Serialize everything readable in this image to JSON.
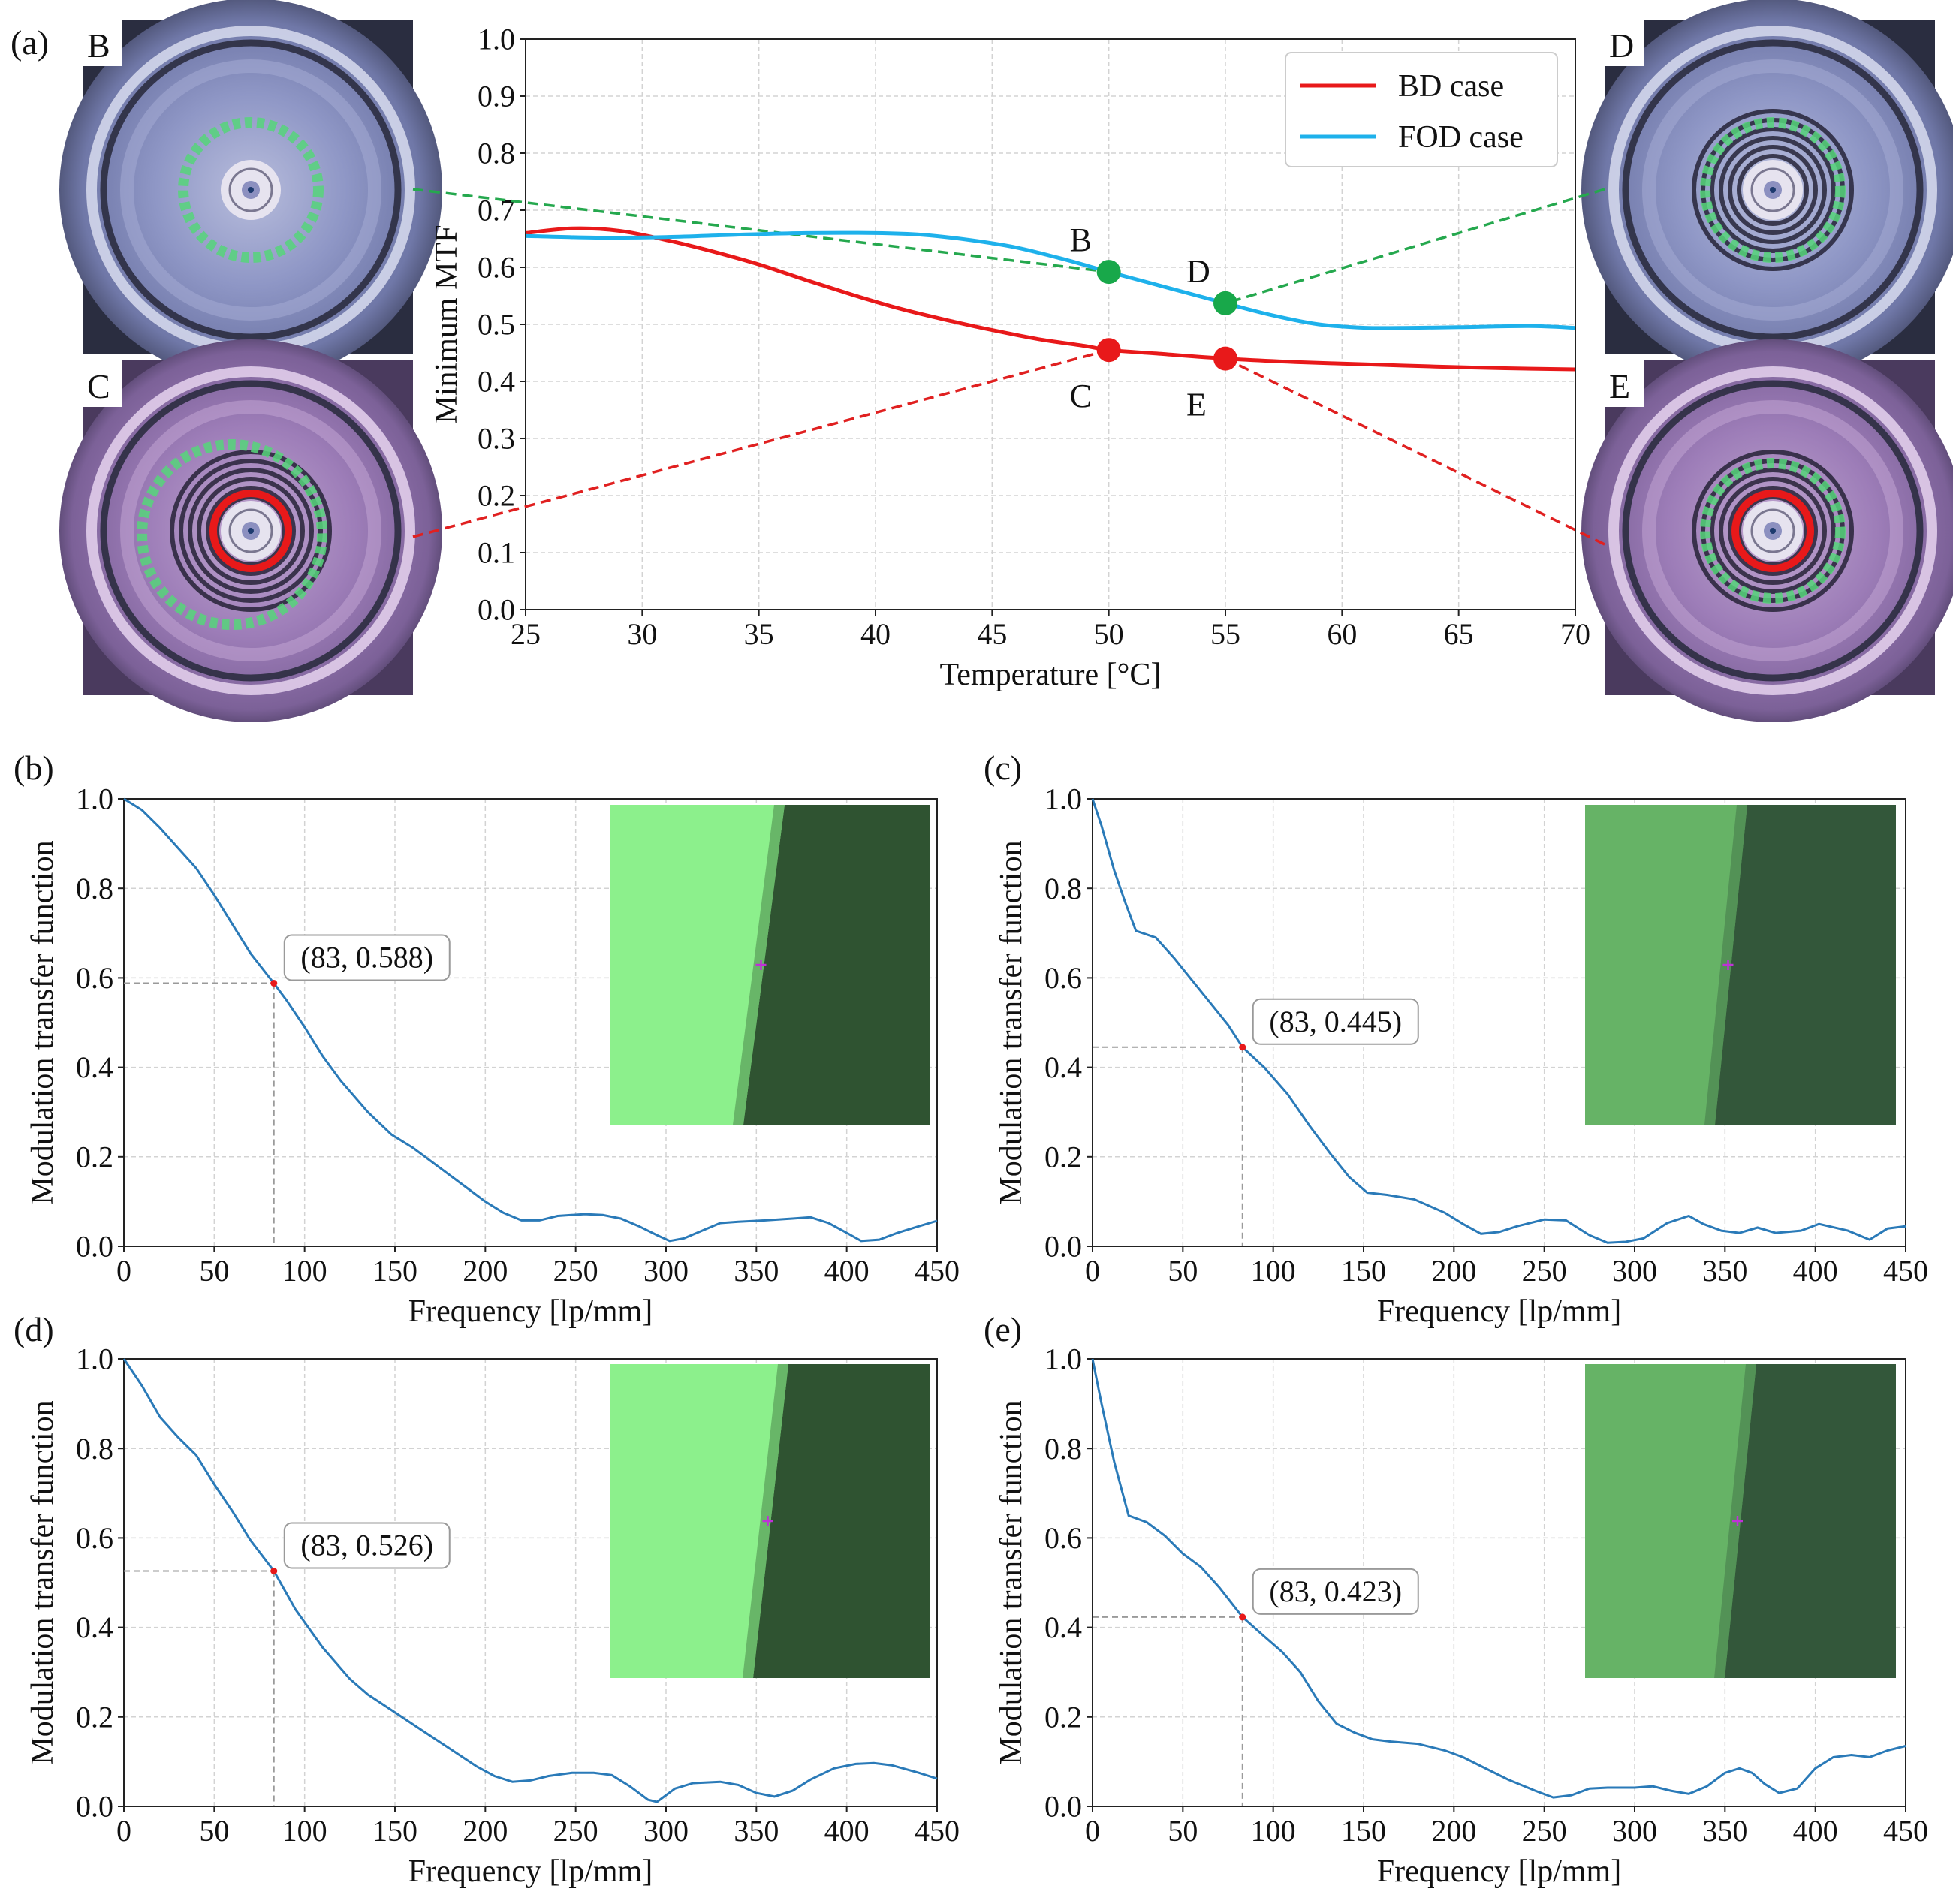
{
  "colors": {
    "bd": "#e8191a",
    "fod": "#1eb1eb",
    "mtf": "#2a7ab8",
    "green_marker": "#18a84a",
    "green_dash": "#25a84e",
    "red_dash": "#e02020",
    "grid": "#d3d3d3",
    "guide": "#9a9a9a",
    "inset_bright": "#8cf08c",
    "inset_bright_dark": "#2f5331",
    "inset_mid": "#66b366",
    "inset_mid_dark": "#33573a",
    "cross": "#c030d8"
  },
  "photos": {
    "B": {
      "label": "B",
      "variant": "fod",
      "red_ring": false
    },
    "C": {
      "label": "C",
      "variant": "bd",
      "red_ring": true
    },
    "D": {
      "label": "D",
      "variant": "fod",
      "red_ring": false
    },
    "E": {
      "label": "E",
      "variant": "bd",
      "red_ring": true
    }
  },
  "chart_data": [
    {
      "panel": "(a)",
      "type": "line",
      "xlabel": "Temperature [°C]",
      "ylabel": "Minimum MTF",
      "xlim": [
        25,
        70
      ],
      "ylim": [
        0.0,
        1.0
      ],
      "xticks": [
        25,
        30,
        35,
        40,
        45,
        50,
        55,
        60,
        65,
        70
      ],
      "yticks": [
        0.0,
        0.1,
        0.2,
        0.3,
        0.4,
        0.5,
        0.6,
        0.7,
        0.8,
        0.9,
        1.0
      ],
      "grid": true,
      "legend": "top-right",
      "series": [
        {
          "name": "BD case",
          "color_key": "bd",
          "x": [
            25,
            27,
            29,
            31,
            33,
            35,
            37,
            39,
            41,
            43,
            45,
            47,
            49,
            50,
            52,
            55,
            58,
            61,
            64,
            67,
            70
          ],
          "y": [
            0.66,
            0.668,
            0.664,
            0.648,
            0.628,
            0.605,
            0.578,
            0.552,
            0.528,
            0.508,
            0.49,
            0.474,
            0.462,
            0.455,
            0.449,
            0.44,
            0.434,
            0.43,
            0.426,
            0.423,
            0.421
          ]
        },
        {
          "name": "FOD case",
          "color_key": "fod",
          "x": [
            25,
            28,
            31,
            34,
            37,
            40,
            42,
            44,
            46,
            48,
            50,
            52,
            54,
            55,
            57,
            59,
            61,
            63,
            65,
            68,
            70
          ],
          "y": [
            0.655,
            0.652,
            0.653,
            0.657,
            0.66,
            0.66,
            0.657,
            0.648,
            0.635,
            0.615,
            0.592,
            0.57,
            0.548,
            0.537,
            0.516,
            0.5,
            0.494,
            0.494,
            0.495,
            0.497,
            0.494
          ]
        }
      ],
      "markers": [
        {
          "label": "B",
          "x": 50,
          "y": 0.592,
          "series": "FOD case",
          "photo": "B",
          "color_key": "green_marker",
          "label_pos": "above-left"
        },
        {
          "label": "D",
          "x": 55,
          "y": 0.537,
          "series": "FOD case",
          "photo": "D",
          "color_key": "green_marker",
          "label_pos": "above-left"
        },
        {
          "label": "C",
          "x": 50,
          "y": 0.455,
          "series": "BD case",
          "photo": "C",
          "color_key": "bd",
          "label_pos": "below-left"
        },
        {
          "label": "E",
          "x": 55,
          "y": 0.44,
          "series": "BD case",
          "photo": "E",
          "color_key": "bd",
          "label_pos": "below-left"
        }
      ]
    },
    {
      "panel": "(b)",
      "type": "line",
      "xlabel": "Frequency [lp/mm]",
      "ylabel": "Modulation transfer function",
      "xlim": [
        0,
        450
      ],
      "ylim": [
        0.0,
        1.0
      ],
      "xticks": [
        0,
        50,
        100,
        150,
        200,
        250,
        300,
        350,
        400,
        450
      ],
      "yticks": [
        0.0,
        0.2,
        0.4,
        0.6,
        0.8,
        1.0
      ],
      "grid": true,
      "annotation": {
        "text": "(83, 0.588)",
        "x": 83,
        "y": 0.588
      },
      "inset": "bright",
      "series": [
        {
          "name": "MTF",
          "x": [
            0,
            10,
            20,
            30,
            40,
            50,
            60,
            70,
            83,
            90,
            100,
            110,
            120,
            135,
            148,
            160,
            175,
            190,
            200,
            210,
            220,
            230,
            240,
            255,
            265,
            275,
            285,
            295,
            302,
            310,
            320,
            330,
            340,
            355,
            370,
            380,
            390,
            400,
            408,
            418,
            428,
            440,
            450
          ],
          "y": [
            1.0,
            0.975,
            0.935,
            0.89,
            0.845,
            0.785,
            0.72,
            0.655,
            0.588,
            0.55,
            0.49,
            0.425,
            0.37,
            0.3,
            0.25,
            0.22,
            0.175,
            0.13,
            0.1,
            0.075,
            0.058,
            0.058,
            0.068,
            0.072,
            0.07,
            0.062,
            0.045,
            0.025,
            0.012,
            0.018,
            0.035,
            0.052,
            0.055,
            0.058,
            0.062,
            0.065,
            0.052,
            0.03,
            0.012,
            0.015,
            0.03,
            0.045,
            0.057
          ]
        }
      ]
    },
    {
      "panel": "(c)",
      "type": "line",
      "xlabel": "Frequency [lp/mm]",
      "ylabel": "Modulation transfer function",
      "xlim": [
        0,
        450
      ],
      "ylim": [
        0.0,
        1.0
      ],
      "xticks": [
        0,
        50,
        100,
        150,
        200,
        250,
        300,
        350,
        400,
        450
      ],
      "yticks": [
        0.0,
        0.2,
        0.4,
        0.6,
        0.8,
        1.0
      ],
      "grid": true,
      "annotation": {
        "text": "(83, 0.445)",
        "x": 83,
        "y": 0.445
      },
      "inset": "mid",
      "series": [
        {
          "name": "MTF",
          "x": [
            0,
            5,
            12,
            18,
            24,
            35,
            45,
            55,
            65,
            75,
            83,
            95,
            108,
            120,
            132,
            142,
            152,
            163,
            178,
            195,
            205,
            215,
            225,
            235,
            250,
            262,
            275,
            285,
            295,
            305,
            318,
            330,
            338,
            348,
            358,
            368,
            378,
            392,
            402,
            418,
            430,
            440,
            450
          ],
          "y": [
            1.0,
            0.94,
            0.84,
            0.77,
            0.705,
            0.69,
            0.645,
            0.595,
            0.545,
            0.495,
            0.445,
            0.4,
            0.34,
            0.27,
            0.205,
            0.155,
            0.12,
            0.115,
            0.105,
            0.075,
            0.05,
            0.028,
            0.032,
            0.045,
            0.06,
            0.058,
            0.025,
            0.008,
            0.01,
            0.018,
            0.052,
            0.068,
            0.05,
            0.035,
            0.03,
            0.042,
            0.03,
            0.035,
            0.05,
            0.035,
            0.015,
            0.04,
            0.045
          ]
        }
      ]
    },
    {
      "panel": "(d)",
      "type": "line",
      "xlabel": "Frequency [lp/mm]",
      "ylabel": "Modulation transfer function",
      "xlim": [
        0,
        450
      ],
      "ylim": [
        0.0,
        1.0
      ],
      "xticks": [
        0,
        50,
        100,
        150,
        200,
        250,
        300,
        350,
        400,
        450
      ],
      "yticks": [
        0.0,
        0.2,
        0.4,
        0.6,
        0.8,
        1.0
      ],
      "grid": true,
      "annotation": {
        "text": "(83, 0.526)",
        "x": 83,
        "y": 0.526
      },
      "inset": "bright",
      "series": [
        {
          "name": "MTF",
          "x": [
            0,
            10,
            20,
            30,
            40,
            50,
            60,
            70,
            83,
            95,
            110,
            125,
            135,
            150,
            165,
            180,
            195,
            205,
            215,
            225,
            235,
            248,
            260,
            270,
            280,
            290,
            295,
            305,
            315,
            330,
            340,
            350,
            360,
            370,
            380,
            393,
            405,
            415,
            425,
            440,
            450
          ],
          "y": [
            1.0,
            0.94,
            0.87,
            0.825,
            0.785,
            0.72,
            0.66,
            0.595,
            0.526,
            0.44,
            0.355,
            0.285,
            0.25,
            0.21,
            0.17,
            0.13,
            0.09,
            0.068,
            0.055,
            0.058,
            0.068,
            0.075,
            0.075,
            0.07,
            0.045,
            0.015,
            0.01,
            0.04,
            0.052,
            0.055,
            0.048,
            0.03,
            0.022,
            0.035,
            0.06,
            0.085,
            0.095,
            0.097,
            0.092,
            0.075,
            0.062
          ]
        }
      ]
    },
    {
      "panel": "(e)",
      "type": "line",
      "xlabel": "Frequency [lp/mm]",
      "ylabel": "Modulation transfer function",
      "xlim": [
        0,
        450
      ],
      "ylim": [
        0.0,
        1.0
      ],
      "xticks": [
        0,
        50,
        100,
        150,
        200,
        250,
        300,
        350,
        400,
        450
      ],
      "yticks": [
        0.0,
        0.2,
        0.4,
        0.6,
        0.8,
        1.0
      ],
      "grid": true,
      "annotation": {
        "text": "(83, 0.423)",
        "x": 83,
        "y": 0.423
      },
      "inset": "mid",
      "series": [
        {
          "name": "MTF",
          "x": [
            0,
            5,
            12,
            20,
            30,
            40,
            50,
            60,
            70,
            83,
            95,
            105,
            115,
            125,
            135,
            145,
            155,
            165,
            180,
            195,
            205,
            215,
            230,
            245,
            255,
            265,
            275,
            285,
            300,
            310,
            320,
            330,
            340,
            350,
            358,
            365,
            372,
            380,
            390,
            400,
            410,
            420,
            430,
            440,
            450
          ],
          "y": [
            1.0,
            0.9,
            0.77,
            0.65,
            0.635,
            0.605,
            0.565,
            0.535,
            0.49,
            0.423,
            0.38,
            0.345,
            0.3,
            0.235,
            0.185,
            0.165,
            0.15,
            0.145,
            0.14,
            0.125,
            0.11,
            0.09,
            0.06,
            0.035,
            0.02,
            0.025,
            0.04,
            0.042,
            0.042,
            0.045,
            0.035,
            0.028,
            0.045,
            0.075,
            0.085,
            0.075,
            0.05,
            0.03,
            0.04,
            0.085,
            0.11,
            0.115,
            0.11,
            0.125,
            0.135
          ]
        }
      ]
    }
  ]
}
